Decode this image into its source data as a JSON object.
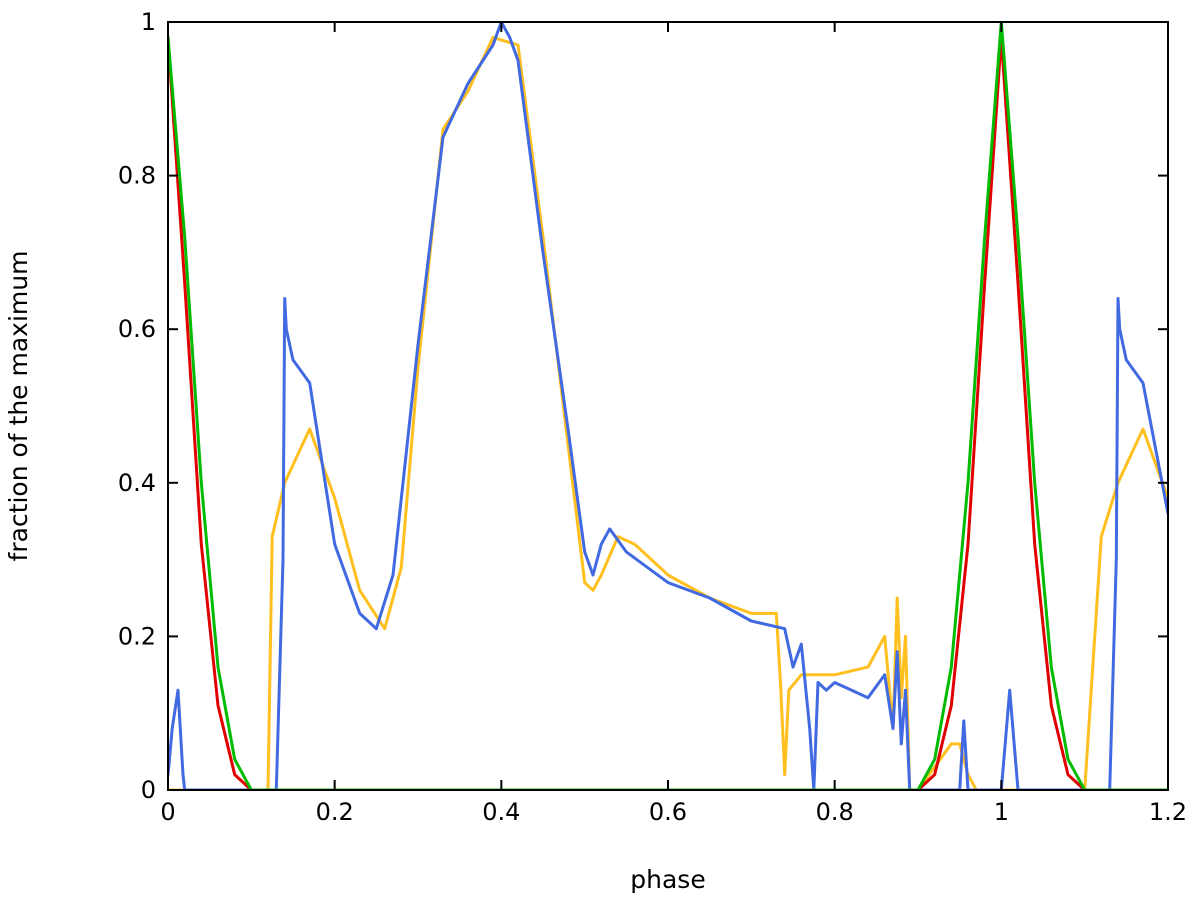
{
  "chart_data": {
    "type": "line",
    "title": "",
    "xlabel": "phase",
    "ylabel": "fraction of the maximum",
    "xlim": [
      0,
      1.2
    ],
    "ylim": [
      0,
      1
    ],
    "x_ticks": [
      0,
      0.2,
      0.4,
      0.6,
      0.8,
      1,
      1.2
    ],
    "x_tick_labels": [
      "0",
      "0.2",
      "0.4",
      "0.6",
      "0.8",
      "1",
      "1.2"
    ],
    "y_ticks": [
      0,
      0.2,
      0.4,
      0.6,
      0.8,
      1
    ],
    "y_tick_labels": [
      "0",
      "0.2",
      "0.4",
      "0.6",
      "0.8",
      "1"
    ],
    "grid": false,
    "legend": "none",
    "series": [
      {
        "color": "#ffbf1f",
        "x": [
          0,
          0.12,
          0.125,
          0.14,
          0.17,
          0.2,
          0.23,
          0.26,
          0.28,
          0.3,
          0.33,
          0.36,
          0.39,
          0.42,
          0.45,
          0.48,
          0.5,
          0.51,
          0.52,
          0.54,
          0.56,
          0.6,
          0.65,
          0.7,
          0.73,
          0.735,
          0.74,
          0.745,
          0.76,
          0.8,
          0.84,
          0.86,
          0.87,
          0.875,
          0.88,
          0.885,
          0.89,
          0.9,
          0.94,
          0.95,
          0.96,
          0.97,
          0.98,
          1.0,
          1.08,
          1.1,
          1.12,
          1.14,
          1.17,
          1.2
        ],
        "y": [
          0,
          0,
          0.33,
          0.4,
          0.47,
          0.38,
          0.26,
          0.21,
          0.29,
          0.55,
          0.86,
          0.91,
          0.98,
          0.97,
          0.72,
          0.45,
          0.27,
          0.26,
          0.28,
          0.33,
          0.32,
          0.28,
          0.25,
          0.23,
          0.23,
          0.14,
          0.02,
          0.13,
          0.15,
          0.15,
          0.16,
          0.2,
          0.08,
          0.25,
          0.12,
          0.2,
          0.0,
          0.0,
          0.06,
          0.06,
          0.02,
          0.0,
          0.0,
          0.0,
          0.0,
          0.0,
          0.33,
          0.4,
          0.47,
          0.38
        ]
      },
      {
        "color": "#4169e1",
        "x": [
          0,
          0.005,
          0.012,
          0.018,
          0.02,
          0.13,
          0.138,
          0.14,
          0.142,
          0.15,
          0.17,
          0.2,
          0.23,
          0.25,
          0.27,
          0.3,
          0.33,
          0.36,
          0.39,
          0.4,
          0.41,
          0.42,
          0.45,
          0.48,
          0.5,
          0.51,
          0.52,
          0.53,
          0.55,
          0.6,
          0.65,
          0.7,
          0.74,
          0.75,
          0.76,
          0.77,
          0.775,
          0.78,
          0.79,
          0.8,
          0.84,
          0.86,
          0.87,
          0.875,
          0.88,
          0.885,
          0.89,
          0.9,
          0.95,
          0.955,
          0.96,
          0.97,
          1.0,
          1.01,
          1.02,
          1.13,
          1.138,
          1.14,
          1.142,
          1.15,
          1.17,
          1.2
        ],
        "y": [
          0.02,
          0.08,
          0.13,
          0.02,
          0,
          0,
          0.3,
          0.64,
          0.6,
          0.56,
          0.53,
          0.32,
          0.23,
          0.21,
          0.28,
          0.58,
          0.85,
          0.92,
          0.97,
          1.0,
          0.98,
          0.95,
          0.7,
          0.47,
          0.31,
          0.28,
          0.32,
          0.34,
          0.31,
          0.27,
          0.25,
          0.22,
          0.21,
          0.16,
          0.19,
          0.08,
          0.0,
          0.14,
          0.13,
          0.14,
          0.12,
          0.15,
          0.08,
          0.18,
          0.06,
          0.13,
          0.0,
          0.0,
          0.0,
          0.09,
          0.0,
          0.0,
          0.0,
          0.13,
          0.0,
          0.0,
          0.3,
          0.64,
          0.6,
          0.56,
          0.53,
          0.36
        ]
      },
      {
        "color": "#e00000",
        "x": [
          0,
          0.02,
          0.04,
          0.06,
          0.08,
          0.1,
          0.12,
          0.88,
          0.9,
          0.92,
          0.94,
          0.96,
          0.98,
          1.0,
          1.02,
          1.04,
          1.06,
          1.08,
          1.1,
          1.12,
          1.2
        ],
        "y": [
          0.98,
          0.66,
          0.32,
          0.11,
          0.02,
          0.0,
          0.0,
          0.0,
          0.0,
          0.02,
          0.11,
          0.32,
          0.66,
          0.98,
          0.66,
          0.32,
          0.11,
          0.02,
          0.0,
          0.0,
          0.0
        ]
      },
      {
        "color": "#00bb00",
        "x": [
          0,
          0.02,
          0.04,
          0.06,
          0.08,
          0.1,
          0.12,
          0.88,
          0.9,
          0.92,
          0.94,
          0.96,
          0.98,
          1.0,
          1.02,
          1.04,
          1.06,
          1.08,
          1.1,
          1.12,
          1.2
        ],
        "y": [
          0.98,
          0.72,
          0.4,
          0.16,
          0.04,
          0.0,
          0.0,
          0.0,
          0.0,
          0.04,
          0.16,
          0.4,
          0.72,
          1.0,
          0.72,
          0.4,
          0.16,
          0.04,
          0.0,
          0.0,
          0.0
        ]
      }
    ]
  }
}
